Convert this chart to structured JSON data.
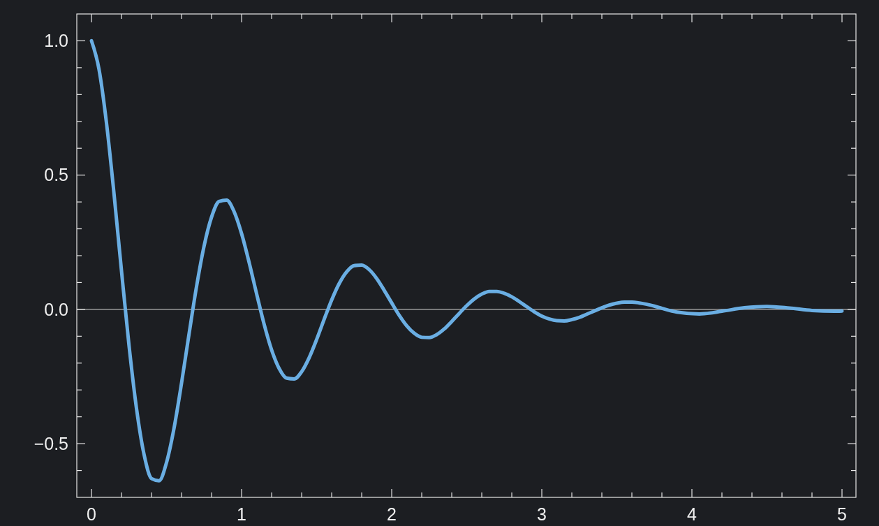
{
  "chart_data": {
    "type": "line",
    "xlim": [
      -0.098,
      5.093
    ],
    "ylim": [
      -0.7,
      1.1
    ],
    "xticks": [
      0,
      {
        "value": 0.2,
        "label": null
      },
      {
        "value": 0.4,
        "label": null
      },
      {
        "value": 0.6,
        "label": null
      },
      {
        "value": 0.8,
        "label": null
      },
      1,
      {
        "value": 1.2,
        "label": null
      },
      {
        "value": 1.4,
        "label": null
      },
      {
        "value": 1.6,
        "label": null
      },
      {
        "value": 1.8,
        "label": null
      },
      2,
      {
        "value": 2.2,
        "label": null
      },
      {
        "value": 2.4,
        "label": null
      },
      {
        "value": 2.6,
        "label": null
      },
      {
        "value": 2.8,
        "label": null
      },
      3,
      {
        "value": 3.2,
        "label": null
      },
      {
        "value": 3.4,
        "label": null
      },
      {
        "value": 3.6,
        "label": null
      },
      {
        "value": 3.8,
        "label": null
      },
      4,
      {
        "value": 4.2,
        "label": null
      },
      {
        "value": 4.4,
        "label": null
      },
      {
        "value": 4.6,
        "label": null
      },
      {
        "value": 4.8,
        "label": null
      },
      5
    ],
    "yticks": [
      {
        "value": -0.6,
        "label": null
      },
      {
        "value": -0.5,
        "label": "−0.5"
      },
      {
        "value": -0.4,
        "label": null
      },
      {
        "value": -0.3,
        "label": null
      },
      {
        "value": -0.2,
        "label": null
      },
      {
        "value": -0.1,
        "label": null
      },
      {
        "value": 0,
        "label": "0.0"
      },
      {
        "value": 0.1,
        "label": null
      },
      {
        "value": 0.2,
        "label": null
      },
      {
        "value": 0.3,
        "label": null
      },
      {
        "value": 0.4,
        "label": null
      },
      {
        "value": 0.5,
        "label": "0.5"
      },
      {
        "value": 0.6,
        "label": null
      },
      {
        "value": 0.7,
        "label": null
      },
      {
        "value": 0.8,
        "label": null
      },
      {
        "value": 0.9,
        "label": null
      },
      {
        "value": 1,
        "label": "1.0"
      }
    ],
    "grid": false,
    "line_style": "solid",
    "ref_lines": [
      {
        "axis": "y",
        "value": 0,
        "color": "#b4b4b4"
      }
    ],
    "series": [
      {
        "color": "#6aaee3",
        "x": [
          0,
          0.05,
          0.1,
          0.15,
          0.2,
          0.25,
          0.3,
          0.35,
          0.4,
          0.45,
          0.5,
          0.55,
          0.6,
          0.65,
          0.7,
          0.75,
          0.8,
          0.85,
          0.9,
          0.95,
          1,
          1.05,
          1.1,
          1.15,
          1.2,
          1.25,
          1.3,
          1.35,
          1.4,
          1.45,
          1.5,
          1.55,
          1.6,
          1.65,
          1.7,
          1.75,
          1.8,
          1.85,
          1.9,
          1.95,
          2,
          2.05,
          2.1,
          2.15,
          2.2,
          2.25,
          2.3,
          2.35,
          2.4,
          2.45,
          2.5,
          2.55,
          2.6,
          2.65,
          2.7,
          2.75,
          2.8,
          2.85,
          2.9,
          2.95,
          3,
          3.05,
          3.1,
          3.15,
          3.2,
          3.25,
          3.3,
          3.35,
          3.4,
          3.45,
          3.5,
          3.55,
          3.6,
          3.65,
          3.7,
          3.75,
          3.8,
          3.9,
          4.05,
          4.2,
          4.35,
          4.5,
          4.65,
          4.8,
          4.95,
          5
        ],
        "values": [
          1,
          0.894,
          0.693,
          0.43,
          0.142,
          -0.135,
          -0.37,
          -0.54,
          -0.63,
          -0.638,
          -0.57,
          -0.442,
          -0.274,
          -0.091,
          0.086,
          0.236,
          0.344,
          0.402,
          0.407,
          0.364,
          0.282,
          0.175,
          0.058,
          -0.055,
          -0.151,
          -0.22,
          -0.256,
          -0.259,
          -0.232,
          -0.18,
          -0.112,
          -0.037,
          0.035,
          0.096,
          0.14,
          0.163,
          0.165,
          0.148,
          0.115,
          0.071,
          0.024,
          -0.022,
          -0.061,
          -0.089,
          -0.104,
          -0.105,
          -0.094,
          -0.073,
          -0.045,
          -0.015,
          0.014,
          0.039,
          0.057,
          0.067,
          0.067,
          0.06,
          0.047,
          0.029,
          0.01,
          -0.009,
          -0.025,
          -0.036,
          -0.042,
          -0.043,
          -0.038,
          -0.03,
          -0.018,
          -0.006,
          0.006,
          0.016,
          0.023,
          0.027,
          0.027,
          0.024,
          0.019,
          0.012,
          0.004,
          -0.01,
          -0.017,
          -0.007,
          0.006,
          0.011,
          0.005,
          -0.004,
          -0.007,
          -0.006
        ]
      }
    ]
  }
}
